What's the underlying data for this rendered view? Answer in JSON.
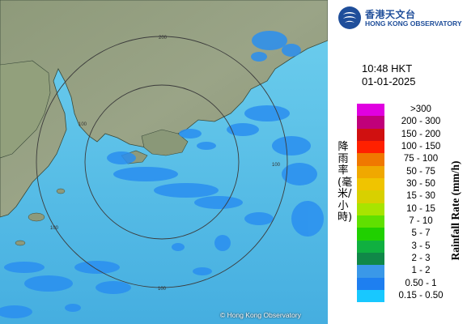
{
  "logo": {
    "name_zh": "香港天文台",
    "name_en": "HONG KONG OBSERVATORY"
  },
  "time": "10:48 HKT",
  "date": "01-01-2025",
  "legend": {
    "title_zh": "降雨率(毫米/小時)",
    "title_en": "Rainfall Rate (mm/h)",
    "items": [
      {
        "label": ">300",
        "color": "#e000e0"
      },
      {
        "label": "200 - 300",
        "color": "#c0007a"
      },
      {
        "label": "150 - 200",
        "color": "#d01010"
      },
      {
        "label": "100 - 150",
        "color": "#ff2000"
      },
      {
        "label": "75 - 100",
        "color": "#f07800"
      },
      {
        "label": "50 - 75",
        "color": "#f0a800"
      },
      {
        "label": "30 - 50",
        "color": "#f0c400"
      },
      {
        "label": "15 - 30",
        "color": "#d8d000"
      },
      {
        "label": "10 - 15",
        "color": "#a8e400"
      },
      {
        "label": "7 - 10",
        "color": "#60e000"
      },
      {
        "label": "5 - 7",
        "color": "#20d000"
      },
      {
        "label": "3 - 5",
        "color": "#10b040"
      },
      {
        "label": "2 - 3",
        "color": "#108848"
      },
      {
        "label": "1 - 2",
        "color": "#3a98e8"
      },
      {
        "label": "0.50 - 1",
        "color": "#1e7ff0"
      },
      {
        "label": "0.15 - 0.50",
        "color": "#18c8ff"
      }
    ]
  },
  "map": {
    "ring_labels": [
      "200",
      "100",
      "100",
      "100",
      "100"
    ],
    "copyright": "© Hong Kong Observatory"
  }
}
